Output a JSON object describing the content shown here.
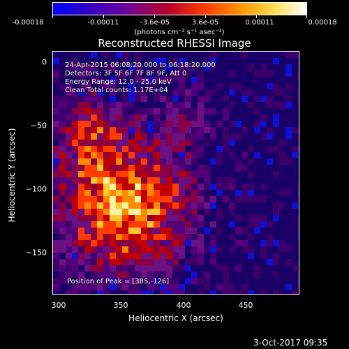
{
  "colorbar": {
    "ticks": [
      "-0.00018",
      "-0.00011",
      "-3.6e-05",
      "3.6e-05",
      "0.00011",
      "0.00018"
    ],
    "units": "(photons cm⁻² s⁻¹ asec⁻²)"
  },
  "title": "Reconstructed RHESSI Image",
  "info": {
    "line1": "24-Apr-2015 06:08:20.000 to 06:18:20.000",
    "line2": "Detectors: 3F 5F 6F 7F 8F 9F, Att 0",
    "line3": "Energy Range: 12.0 - 25.0 keV",
    "line4": "Clean     Total counts: 1.17E+04"
  },
  "peak_label": "Position of Peak = [385,-126]",
  "axes": {
    "xlabel": "Heliocentric X (arcsec)",
    "ylabel": "Heliocentric Y (arcsec)",
    "xticks": [
      "300",
      "350",
      "400",
      "450"
    ],
    "yticks": [
      "0",
      "−50",
      "−100",
      "−150"
    ]
  },
  "timestamp": "3-Oct-2017 09:35"
}
